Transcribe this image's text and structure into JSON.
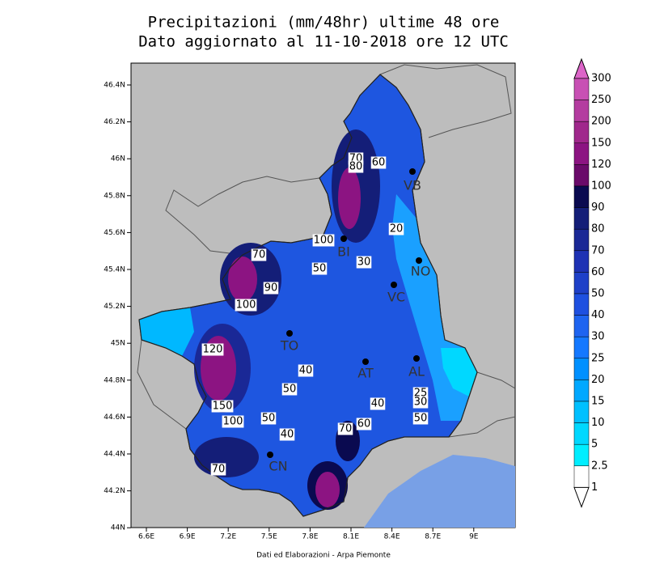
{
  "map": {
    "title": [
      "Precipitazioni (mm/48hr) ultime 48 ore",
      "Dato aggiornato al 11-10-2018 ore 12 UTC"
    ],
    "credit": "Dati ed Elaborazioni - Arpa Piemonte",
    "lat_ticks": [
      "46.4N",
      "46.2N",
      "46N",
      "45.8N",
      "45.6N",
      "45.4N",
      "45.2N",
      "45N",
      "44.8N",
      "44.6N",
      "44.4N",
      "44.2N",
      "44N"
    ],
    "lon_ticks": [
      "6.6E",
      "6.9E",
      "7.2E",
      "7.5E",
      "7.8E",
      "8.1E",
      "8.4E",
      "8.7E",
      "9E"
    ],
    "legend": {
      "levels": [
        300,
        250,
        200,
        150,
        120,
        100,
        90,
        80,
        70,
        60,
        50,
        40,
        30,
        25,
        20,
        15,
        10,
        5,
        2.5,
        1
      ],
      "colors": [
        "#dc64c8",
        "#c850b4",
        "#b43ca0",
        "#a0288c",
        "#8c1482",
        "#6a0a6a",
        "#0a0a50",
        "#141e78",
        "#1a2896",
        "#1e32b4",
        "#1e40c8",
        "#1e50e0",
        "#1e64f0",
        "#1478ff",
        "#0090ff",
        "#00a8ff",
        "#00c0ff",
        "#00d8ff",
        "#00eeff",
        "#ffffff"
      ]
    },
    "cities": [
      "VB",
      "BI",
      "NO",
      "VC",
      "TO",
      "AT",
      "AL",
      "CN"
    ],
    "contour_labels": [
      "70",
      "80",
      "60",
      "20",
      "100",
      "30",
      "50",
      "70",
      "90",
      "100",
      "120",
      "40",
      "50",
      "40",
      "150",
      "100",
      "50",
      "40",
      "70",
      "60",
      "25",
      "30",
      "50",
      "70"
    ]
  }
}
